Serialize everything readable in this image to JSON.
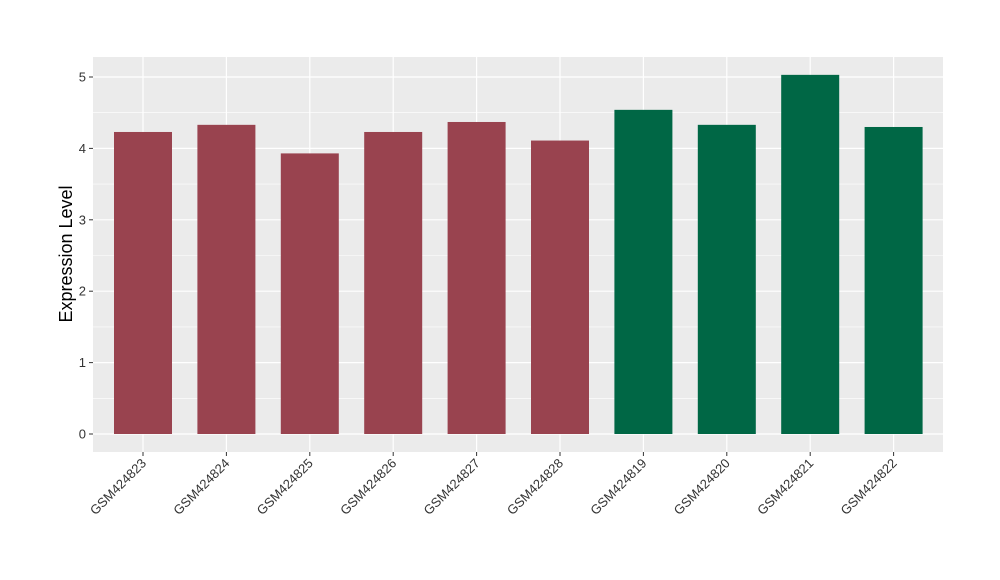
{
  "chart_data": {
    "type": "bar",
    "categories": [
      "GSM424823",
      "GSM424824",
      "GSM424825",
      "GSM424826",
      "GSM424827",
      "GSM424828",
      "GSM424819",
      "GSM424820",
      "GSM424821",
      "GSM424822"
    ],
    "values": [
      4.23,
      4.33,
      3.93,
      4.23,
      4.37,
      4.11,
      4.54,
      4.33,
      5.03,
      4.3
    ],
    "bar_colors": [
      "#99434f",
      "#99434f",
      "#99434f",
      "#99434f",
      "#99434f",
      "#99434f",
      "#006745",
      "#006745",
      "#006745",
      "#006745"
    ],
    "title": "",
    "xlabel": "",
    "ylabel": "Expression Level",
    "ylim": [
      -0.25,
      5.28
    ],
    "yticks": [
      0,
      1,
      2,
      3,
      4,
      5
    ],
    "grid": true,
    "panel_background": "#ebebeb",
    "grid_color": "#ffffff"
  }
}
